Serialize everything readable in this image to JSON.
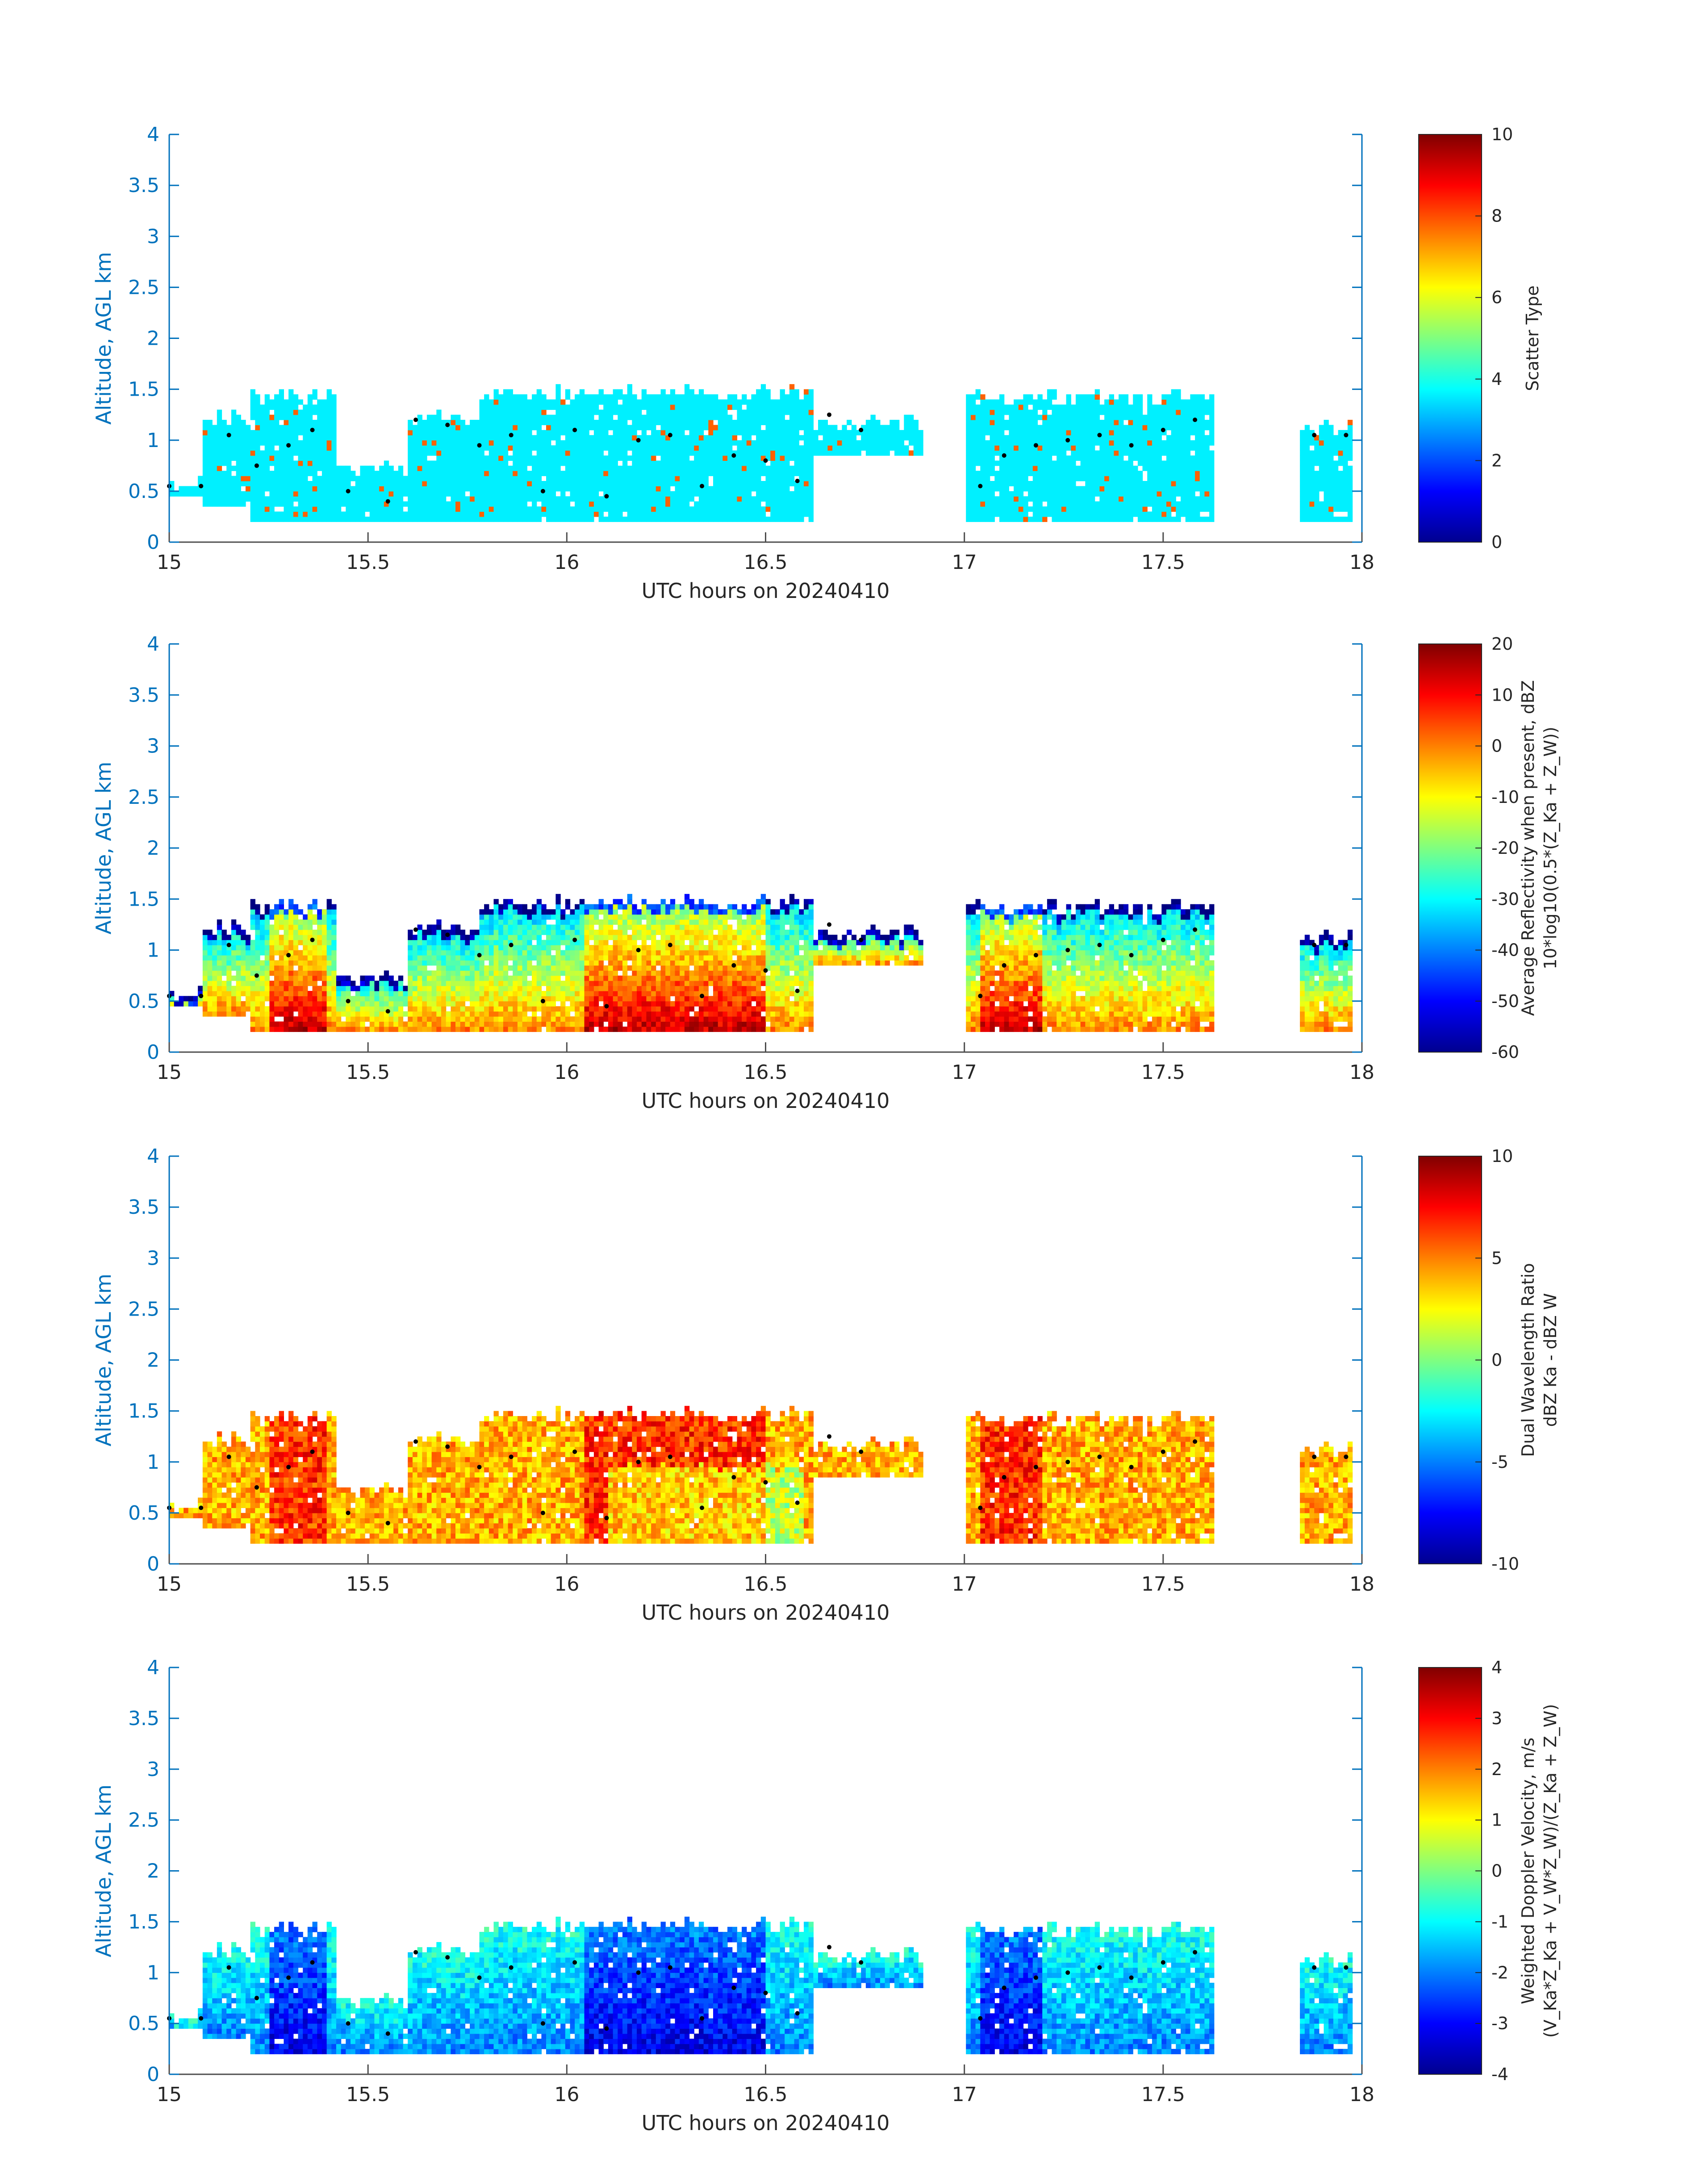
{
  "chart_data": [
    {
      "type": "heatmap",
      "xlabel": "UTC hours on 20240410",
      "ylabel": "Altitude, AGL km",
      "xlim": [
        15,
        18
      ],
      "ylim": [
        0,
        4
      ],
      "xticks": [
        "15",
        "15.5",
        "16",
        "16.5",
        "17",
        "17.5",
        "18"
      ],
      "yticks": [
        "0",
        "0.5",
        "1",
        "1.5",
        "2",
        "2.5",
        "3",
        "3.5",
        "4"
      ],
      "colorbar": {
        "label_lines": [
          "Scatter Type"
        ],
        "ticks": [
          "0",
          "2",
          "4",
          "6",
          "8",
          "10"
        ],
        "clim": [
          0,
          10
        ]
      }
    },
    {
      "type": "heatmap",
      "xlabel": "UTC hours on 20240410",
      "ylabel": "Altitude, AGL km",
      "xlim": [
        15,
        18
      ],
      "ylim": [
        0,
        4
      ],
      "xticks": [
        "15",
        "15.5",
        "16",
        "16.5",
        "17",
        "17.5",
        "18"
      ],
      "yticks": [
        "0",
        "0.5",
        "1",
        "1.5",
        "2",
        "2.5",
        "3",
        "3.5",
        "4"
      ],
      "colorbar": {
        "label_lines": [
          "Average Reflectivity when present, dBZ",
          "10*log10(0.5*(Z_Ka + Z_W))"
        ],
        "ticks": [
          "-60",
          "-50",
          "-40",
          "-30",
          "-20",
          "-10",
          "0",
          "10",
          "20"
        ],
        "clim": [
          -60,
          20
        ]
      }
    },
    {
      "type": "heatmap",
      "xlabel": "UTC hours on 20240410",
      "ylabel": "Altitude, AGL km",
      "xlim": [
        15,
        18
      ],
      "ylim": [
        0,
        4
      ],
      "xticks": [
        "15",
        "15.5",
        "16",
        "16.5",
        "17",
        "17.5",
        "18"
      ],
      "yticks": [
        "0",
        "0.5",
        "1",
        "1.5",
        "2",
        "2.5",
        "3",
        "3.5",
        "4"
      ],
      "colorbar": {
        "label_lines": [
          "Dual Wavelength Ratio",
          "dBZ Ka - dBZ W"
        ],
        "ticks": [
          "-10",
          "-5",
          "0",
          "5",
          "10"
        ],
        "clim": [
          -10,
          10
        ]
      }
    },
    {
      "type": "heatmap",
      "xlabel": "UTC hours on 20240410",
      "ylabel": "Altitude, AGL km",
      "xlim": [
        15,
        18
      ],
      "ylim": [
        0,
        4
      ],
      "xticks": [
        "15",
        "15.5",
        "16",
        "16.5",
        "17",
        "17.5",
        "18"
      ],
      "yticks": [
        "0",
        "0.5",
        "1",
        "1.5",
        "2",
        "2.5",
        "3",
        "3.5",
        "4"
      ],
      "colorbar": {
        "label_lines": [
          "Weighted Doppler Velocity, m/s",
          "(V_Ka*Z_Ka + V_W*Z_W)/(Z_Ka + Z_W)"
        ],
        "ticks": [
          "-4",
          "-3",
          "-2",
          "-1",
          "0",
          "1",
          "2",
          "3",
          "4"
        ],
        "clim": [
          -4,
          4
        ]
      }
    }
  ],
  "cloud_extent": [
    {
      "x0": 15.0,
      "x1": 15.09,
      "top": 0.65,
      "base": 0.45
    },
    {
      "x0": 15.09,
      "x1": 15.2,
      "top": 1.3,
      "base": 0.35
    },
    {
      "x0": 15.2,
      "x1": 15.42,
      "top": 1.5,
      "base": 0.2
    },
    {
      "x0": 15.42,
      "x1": 15.6,
      "top": 0.8,
      "base": 0.2
    },
    {
      "x0": 15.6,
      "x1": 15.78,
      "top": 1.3,
      "base": 0.2
    },
    {
      "x0": 15.78,
      "x1": 16.62,
      "top": 1.55,
      "base": 0.2
    },
    {
      "x0": 16.62,
      "x1": 16.9,
      "top": 1.25,
      "base": 0.85
    },
    {
      "x0": 17.0,
      "x1": 17.63,
      "top": 1.5,
      "base": 0.2
    },
    {
      "x0": 17.84,
      "x1": 17.98,
      "top": 1.2,
      "base": 0.2
    }
  ],
  "cloud_top_markers": {
    "x": [
      15.0,
      15.08,
      15.15,
      15.22,
      15.3,
      15.36,
      15.45,
      15.55,
      15.62,
      15.7,
      15.78,
      15.86,
      15.94,
      16.02,
      16.1,
      16.18,
      16.26,
      16.34,
      16.42,
      16.5,
      16.58,
      16.66,
      16.74,
      17.04,
      17.1,
      17.18,
      17.26,
      17.34,
      17.42,
      17.5,
      17.58,
      17.88,
      17.96
    ],
    "alt": [
      0.55,
      0.55,
      1.05,
      0.75,
      0.95,
      1.1,
      0.5,
      0.4,
      1.2,
      1.15,
      0.95,
      1.05,
      0.5,
      1.1,
      0.45,
      1.0,
      1.05,
      0.55,
      0.85,
      0.8,
      0.6,
      1.25,
      1.1,
      0.55,
      0.85,
      0.95,
      1.0,
      1.05,
      0.95,
      1.1,
      1.2,
      1.05,
      1.05
    ]
  }
}
